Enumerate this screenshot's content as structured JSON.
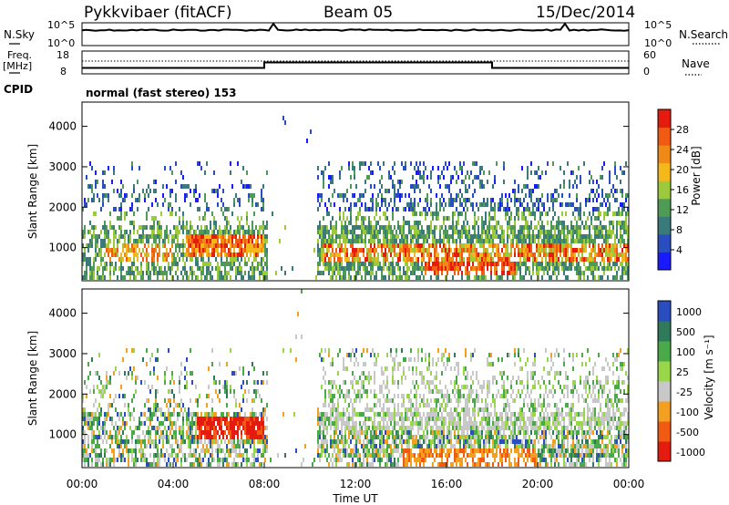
{
  "header": {
    "radar": "Pykkvibaer (fitACF)",
    "beam": "Beam 05",
    "date": "15/Dec/2014"
  },
  "nsky_panel": {
    "left_label": "N.Sky",
    "right_label": "N.Search",
    "left_ticks": [
      {
        "base": "10",
        "exp": "^5"
      },
      {
        "base": "10",
        "exp": "^0"
      }
    ],
    "right_ticks": [
      {
        "base": "10",
        "exp": "^5"
      },
      {
        "base": "10",
        "exp": "^0"
      }
    ]
  },
  "freq_panel": {
    "left_label_1": "Freq.",
    "left_label_2": "[MHz]",
    "right_label": "Nave",
    "left_ticks": [
      "18",
      "8"
    ],
    "right_ticks": [
      "60",
      "0"
    ]
  },
  "cpid": {
    "label": "CPID",
    "mode_text": "normal (fast stereo) 153"
  },
  "colors": {
    "power": [
      "#1a1aff",
      "#2a4dbf",
      "#3a7a7a",
      "#4f9a55",
      "#9cca3c",
      "#f4b81b",
      "#f08a16",
      "#f05a12",
      "#e41b0e"
    ],
    "velocity": [
      "#e41b0e",
      "#f05a12",
      "#f3a020",
      "#c8c8c8",
      "#9ad64a",
      "#4aaa4a",
      "#2f7a5a",
      "#2a4dbf"
    ]
  },
  "chart_data": [
    {
      "type": "heatmap",
      "parameter": "power",
      "ylabel": "Slant Range [km]",
      "ylim": [
        180,
        4600
      ],
      "yticks": [
        1000,
        2000,
        3000,
        4000
      ],
      "colorbar_label": "Power [dB]",
      "colorbar_ticks": [
        4,
        8,
        12,
        16,
        20,
        24,
        28
      ],
      "colorbar_range": [
        0,
        32
      ]
    },
    {
      "type": "heatmap",
      "parameter": "velocity",
      "ylabel": "Slant Range [km]",
      "ylim": [
        180,
        4600
      ],
      "yticks": [
        1000,
        2000,
        3000,
        4000
      ],
      "xlabel": "Time UT",
      "xlim_hours": [
        0,
        24
      ],
      "xtick_labels": [
        "00:00",
        "04:00",
        "08:00",
        "12:00",
        "16:00",
        "20:00",
        "00:00"
      ],
      "colorbar_label": "Velocity [m s⁻¹]",
      "colorbar_ticks": [
        "1000",
        "500",
        "100",
        "25",
        "-25",
        "-100",
        "-500",
        "-1000"
      ]
    }
  ]
}
